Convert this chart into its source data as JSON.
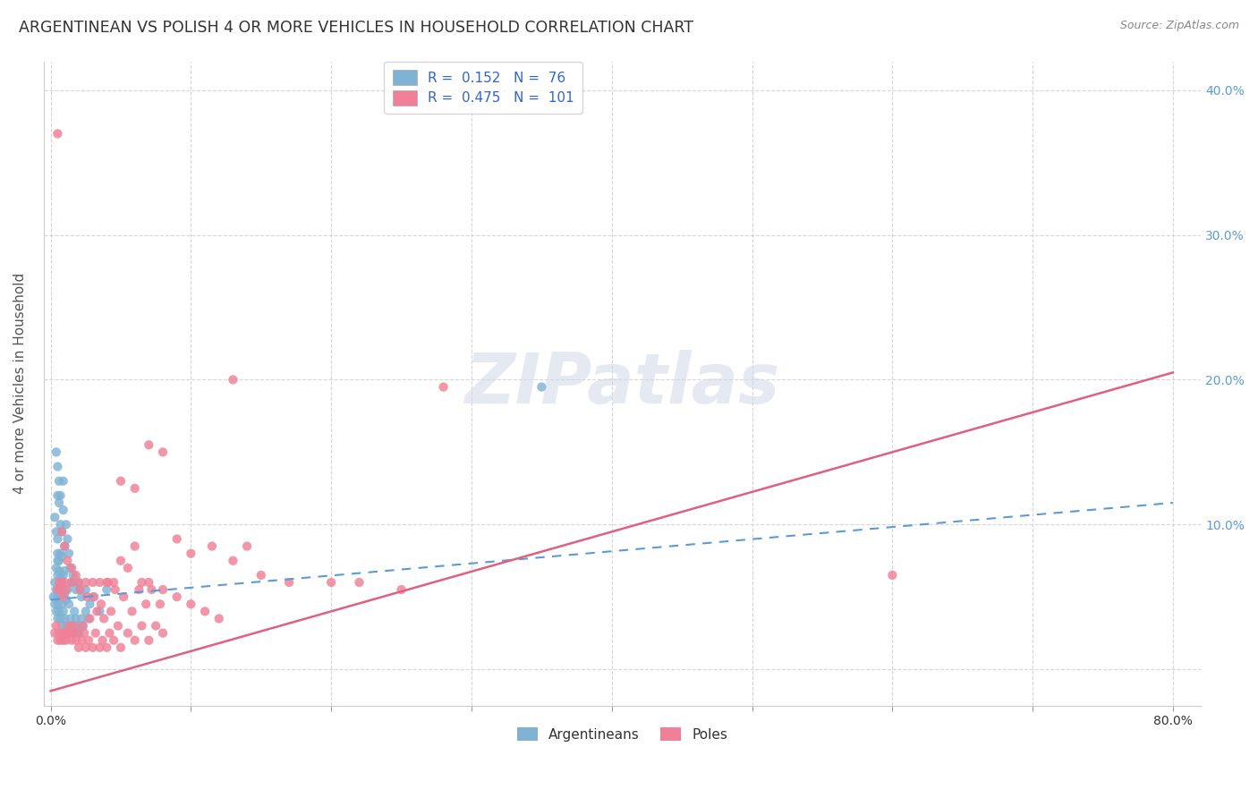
{
  "title": "ARGENTINEAN VS POLISH 4 OR MORE VEHICLES IN HOUSEHOLD CORRELATION CHART",
  "source": "Source: ZipAtlas.com",
  "ylabel": "4 or more Vehicles in Household",
  "ylim": [
    -0.025,
    0.42
  ],
  "xlim": [
    -0.005,
    0.82
  ],
  "yticks": [
    0.0,
    0.1,
    0.2,
    0.3,
    0.4
  ],
  "ytick_labels": [
    "",
    "10.0%",
    "20.0%",
    "30.0%",
    "40.0%"
  ],
  "argentinean_color": "#7fb3d3",
  "polish_color": "#f08098",
  "argentinean_line_color": "#5b9bd5",
  "polish_line_color": "#e06080",
  "background_color": "#ffffff",
  "grid_color": "#cccccc",
  "arg_R": 0.152,
  "arg_N": 76,
  "pol_R": 0.475,
  "pol_N": 101,
  "arg_line": {
    "x0": 0.0,
    "y0": 0.048,
    "x1": 0.8,
    "y1": 0.115
  },
  "pol_line": {
    "x0": 0.0,
    "y0": -0.015,
    "x1": 0.8,
    "y2": 0.205
  },
  "argentinean_points_x": [
    0.002,
    0.003,
    0.003,
    0.004,
    0.004,
    0.004,
    0.005,
    0.005,
    0.005,
    0.005,
    0.005,
    0.005,
    0.005,
    0.006,
    0.006,
    0.006,
    0.006,
    0.007,
    0.007,
    0.007,
    0.007,
    0.008,
    0.008,
    0.008,
    0.008,
    0.009,
    0.009,
    0.01,
    0.01,
    0.01,
    0.011,
    0.011,
    0.012,
    0.012,
    0.013,
    0.014,
    0.015,
    0.015,
    0.016,
    0.017,
    0.018,
    0.019,
    0.02,
    0.021,
    0.022,
    0.023,
    0.025,
    0.027,
    0.003,
    0.004,
    0.004,
    0.005,
    0.005,
    0.006,
    0.006,
    0.007,
    0.007,
    0.008,
    0.009,
    0.009,
    0.01,
    0.011,
    0.012,
    0.013,
    0.014,
    0.015,
    0.016,
    0.018,
    0.02,
    0.022,
    0.025,
    0.028,
    0.03,
    0.035,
    0.04,
    0.35
  ],
  "argentinean_points_y": [
    0.05,
    0.045,
    0.06,
    0.04,
    0.055,
    0.07,
    0.035,
    0.05,
    0.065,
    0.075,
    0.08,
    0.09,
    0.045,
    0.04,
    0.055,
    0.068,
    0.075,
    0.035,
    0.05,
    0.063,
    0.08,
    0.03,
    0.045,
    0.06,
    0.078,
    0.04,
    0.065,
    0.035,
    0.052,
    0.068,
    0.03,
    0.048,
    0.025,
    0.055,
    0.045,
    0.035,
    0.03,
    0.06,
    0.025,
    0.04,
    0.035,
    0.03,
    0.025,
    0.055,
    0.035,
    0.03,
    0.04,
    0.035,
    0.105,
    0.15,
    0.095,
    0.12,
    0.14,
    0.115,
    0.13,
    0.1,
    0.12,
    0.095,
    0.11,
    0.13,
    0.085,
    0.1,
    0.09,
    0.08,
    0.07,
    0.06,
    0.065,
    0.055,
    0.06,
    0.05,
    0.055,
    0.045,
    0.05,
    0.04,
    0.055,
    0.195
  ],
  "polish_points_x": [
    0.003,
    0.004,
    0.005,
    0.005,
    0.006,
    0.006,
    0.007,
    0.007,
    0.008,
    0.008,
    0.009,
    0.009,
    0.01,
    0.01,
    0.011,
    0.011,
    0.012,
    0.013,
    0.014,
    0.015,
    0.015,
    0.016,
    0.017,
    0.018,
    0.019,
    0.02,
    0.021,
    0.022,
    0.023,
    0.024,
    0.025,
    0.026,
    0.027,
    0.028,
    0.03,
    0.031,
    0.032,
    0.033,
    0.035,
    0.036,
    0.037,
    0.038,
    0.04,
    0.041,
    0.042,
    0.043,
    0.045,
    0.046,
    0.048,
    0.05,
    0.052,
    0.055,
    0.058,
    0.06,
    0.063,
    0.065,
    0.068,
    0.07,
    0.072,
    0.075,
    0.078,
    0.08,
    0.005,
    0.008,
    0.01,
    0.012,
    0.015,
    0.018,
    0.02,
    0.025,
    0.03,
    0.035,
    0.04,
    0.045,
    0.05,
    0.055,
    0.06,
    0.065,
    0.07,
    0.08,
    0.09,
    0.1,
    0.11,
    0.12,
    0.13,
    0.14,
    0.28,
    0.6,
    0.05,
    0.06,
    0.07,
    0.08,
    0.09,
    0.1,
    0.115,
    0.13,
    0.15,
    0.17,
    0.2,
    0.22,
    0.25
  ],
  "polish_points_y": [
    0.025,
    0.03,
    0.02,
    0.055,
    0.025,
    0.06,
    0.02,
    0.055,
    0.025,
    0.06,
    0.02,
    0.05,
    0.025,
    0.06,
    0.02,
    0.055,
    0.025,
    0.03,
    0.025,
    0.02,
    0.06,
    0.025,
    0.03,
    0.02,
    0.025,
    0.015,
    0.055,
    0.02,
    0.03,
    0.025,
    0.015,
    0.05,
    0.02,
    0.035,
    0.015,
    0.05,
    0.025,
    0.04,
    0.015,
    0.045,
    0.02,
    0.035,
    0.015,
    0.06,
    0.025,
    0.04,
    0.02,
    0.055,
    0.03,
    0.015,
    0.05,
    0.025,
    0.04,
    0.02,
    0.055,
    0.03,
    0.045,
    0.02,
    0.055,
    0.03,
    0.045,
    0.025,
    0.37,
    0.095,
    0.085,
    0.075,
    0.07,
    0.065,
    0.06,
    0.06,
    0.06,
    0.06,
    0.06,
    0.06,
    0.075,
    0.07,
    0.085,
    0.06,
    0.06,
    0.055,
    0.05,
    0.045,
    0.04,
    0.035,
    0.2,
    0.085,
    0.195,
    0.065,
    0.13,
    0.125,
    0.155,
    0.15,
    0.09,
    0.08,
    0.085,
    0.075,
    0.065,
    0.06,
    0.06,
    0.06,
    0.055
  ]
}
